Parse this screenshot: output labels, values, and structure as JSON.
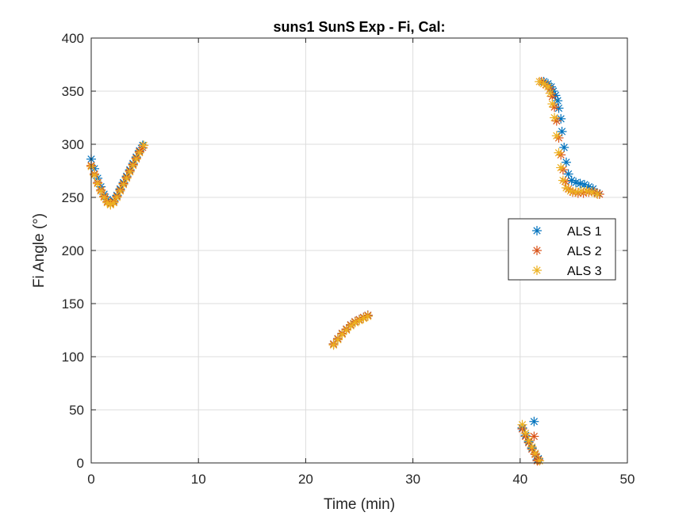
{
  "chart_data": {
    "type": "scatter",
    "title": "suns1 SunS Exp - Fi, Cal:",
    "xlabel": "Time (min)",
    "ylabel": "Fi Angle (°)",
    "xlim": [
      0,
      50
    ],
    "ylim": [
      0,
      400
    ],
    "xticks": [
      "0",
      "10",
      "20",
      "30",
      "40",
      "50"
    ],
    "yticks": [
      "0",
      "50",
      "100",
      "150",
      "200",
      "250",
      "300",
      "350",
      "400"
    ],
    "grid": true,
    "legend_position": "right",
    "marker": "asterisk",
    "series": [
      {
        "name": "ALS 1",
        "color": "#0072BD",
        "x": [
          0,
          0.3,
          0.6,
          0.9,
          1.2,
          1.5,
          1.8,
          2.1,
          2.4,
          2.7,
          3.0,
          3.3,
          3.6,
          3.9,
          4.2,
          4.5,
          4.8,
          22.6,
          23.0,
          23.4,
          23.8,
          24.2,
          24.6,
          25.0,
          25.4,
          25.8,
          40.2,
          40.5,
          40.8,
          41.1,
          41.4,
          41.7,
          41.3,
          41.6,
          42.2,
          42.6,
          42.9,
          43.1,
          43.3,
          43.5,
          43.6,
          43.8,
          43.9,
          44.1,
          44.3,
          44.5,
          44.8,
          45.2,
          45.6,
          46.0,
          46.4,
          46.8,
          47.2
        ],
        "y": [
          286,
          277,
          268,
          260,
          253,
          248,
          245,
          247,
          252,
          258,
          264,
          270,
          276,
          282,
          288,
          294,
          299,
          112,
          117,
          122,
          126,
          130,
          133,
          135,
          137,
          139,
          33,
          26,
          20,
          14,
          9,
          4,
          39,
          3,
          359,
          357,
          354,
          350,
          346,
          341,
          334,
          324,
          312,
          297,
          283,
          272,
          266,
          264,
          263,
          262,
          260,
          258,
          254
        ]
      },
      {
        "name": "ALS 2",
        "color": "#D95319",
        "x": [
          0,
          0.3,
          0.6,
          0.9,
          1.2,
          1.5,
          1.8,
          2.1,
          2.4,
          2.7,
          3.0,
          3.3,
          3.6,
          3.9,
          4.2,
          4.5,
          4.8,
          22.6,
          23.0,
          23.4,
          23.8,
          24.2,
          24.6,
          25.0,
          25.4,
          25.8,
          40.2,
          40.5,
          40.8,
          41.1,
          41.4,
          41.7,
          41.3,
          41.6,
          42.0,
          42.4,
          42.8,
          43.0,
          43.2,
          43.4,
          43.6,
          43.8,
          44.0,
          44.2,
          44.5,
          44.9,
          45.4,
          45.9,
          46.4,
          46.9,
          47.4
        ],
        "y": [
          280,
          272,
          264,
          257,
          251,
          246,
          244,
          246,
          251,
          257,
          263,
          269,
          275,
          281,
          287,
          293,
          297,
          112,
          117,
          122,
          126,
          130,
          133,
          135,
          137,
          139,
          32,
          25,
          19,
          13,
          8,
          3,
          25,
          2,
          359,
          356,
          352,
          345,
          335,
          322,
          306,
          290,
          276,
          265,
          258,
          255,
          254,
          254,
          255,
          255,
          253
        ]
      },
      {
        "name": "ALS 3",
        "color": "#EDB120",
        "x": [
          0,
          0.3,
          0.6,
          0.9,
          1.2,
          1.5,
          1.8,
          2.1,
          2.4,
          2.7,
          3.0,
          3.3,
          3.6,
          3.9,
          4.2,
          4.5,
          4.9,
          22.6,
          23.0,
          23.4,
          23.8,
          24.2,
          24.6,
          25.0,
          25.4,
          25.8,
          40.2,
          40.5,
          40.8,
          41.1,
          41.4,
          41.8,
          41.8,
          42.2,
          42.6,
          42.8,
          43.0,
          43.2,
          43.4,
          43.6,
          43.8,
          44.0,
          44.3,
          44.7,
          45.2,
          45.7,
          46.2,
          46.7,
          47.2
        ],
        "y": [
          279,
          271,
          263,
          256,
          250,
          245,
          243,
          245,
          250,
          256,
          262,
          268,
          274,
          280,
          286,
          292,
          299,
          111,
          116,
          121,
          125,
          129,
          132,
          134,
          136,
          138,
          36,
          28,
          21,
          15,
          9,
          2,
          359,
          357,
          354,
          348,
          338,
          325,
          308,
          292,
          278,
          266,
          259,
          256,
          255,
          256,
          256,
          255,
          253
        ]
      }
    ]
  }
}
